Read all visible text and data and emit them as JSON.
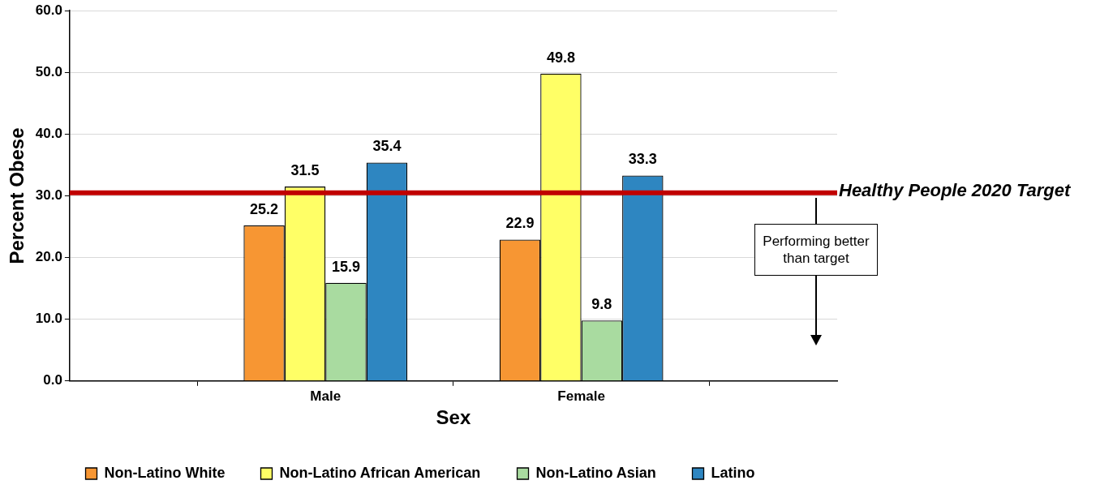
{
  "chart_data": {
    "type": "bar",
    "xlabel": "Sex",
    "ylabel": "Percent Obese",
    "categories": [
      null,
      "Male",
      "Female",
      null
    ],
    "series": [
      {
        "name": "Non-Latino White",
        "color": "#f79633",
        "values": [
          null,
          25.2,
          22.9,
          null
        ]
      },
      {
        "name": "Non-Latino African American",
        "color": "#ffff66",
        "values": [
          null,
          31.5,
          49.8,
          null
        ]
      },
      {
        "name": "Non-Latino Asian",
        "color": "#a9dba0",
        "values": [
          null,
          15.9,
          9.8,
          null
        ]
      },
      {
        "name": "Latino",
        "color": "#2e86c1",
        "values": [
          null,
          35.4,
          33.3,
          null
        ]
      }
    ],
    "ylim": [
      0,
      60
    ],
    "yticks": [
      {
        "value": 0,
        "label": "0.0"
      },
      {
        "value": 10,
        "label": "10.0"
      },
      {
        "value": 20,
        "label": "20.0"
      },
      {
        "value": 30,
        "label": "30.0"
      },
      {
        "value": 40,
        "label": "40.0"
      },
      {
        "value": 50,
        "label": "50.0"
      },
      {
        "value": 60,
        "label": "60.0"
      }
    ],
    "ref_lines": [
      {
        "axis": "y",
        "value": 30.5,
        "label": "Healthy People 2020 Target",
        "color": "#c00000"
      }
    ],
    "annotations": [
      "Performing better than target"
    ],
    "grid": "y",
    "legend": "bottom",
    "data_labels": true
  }
}
